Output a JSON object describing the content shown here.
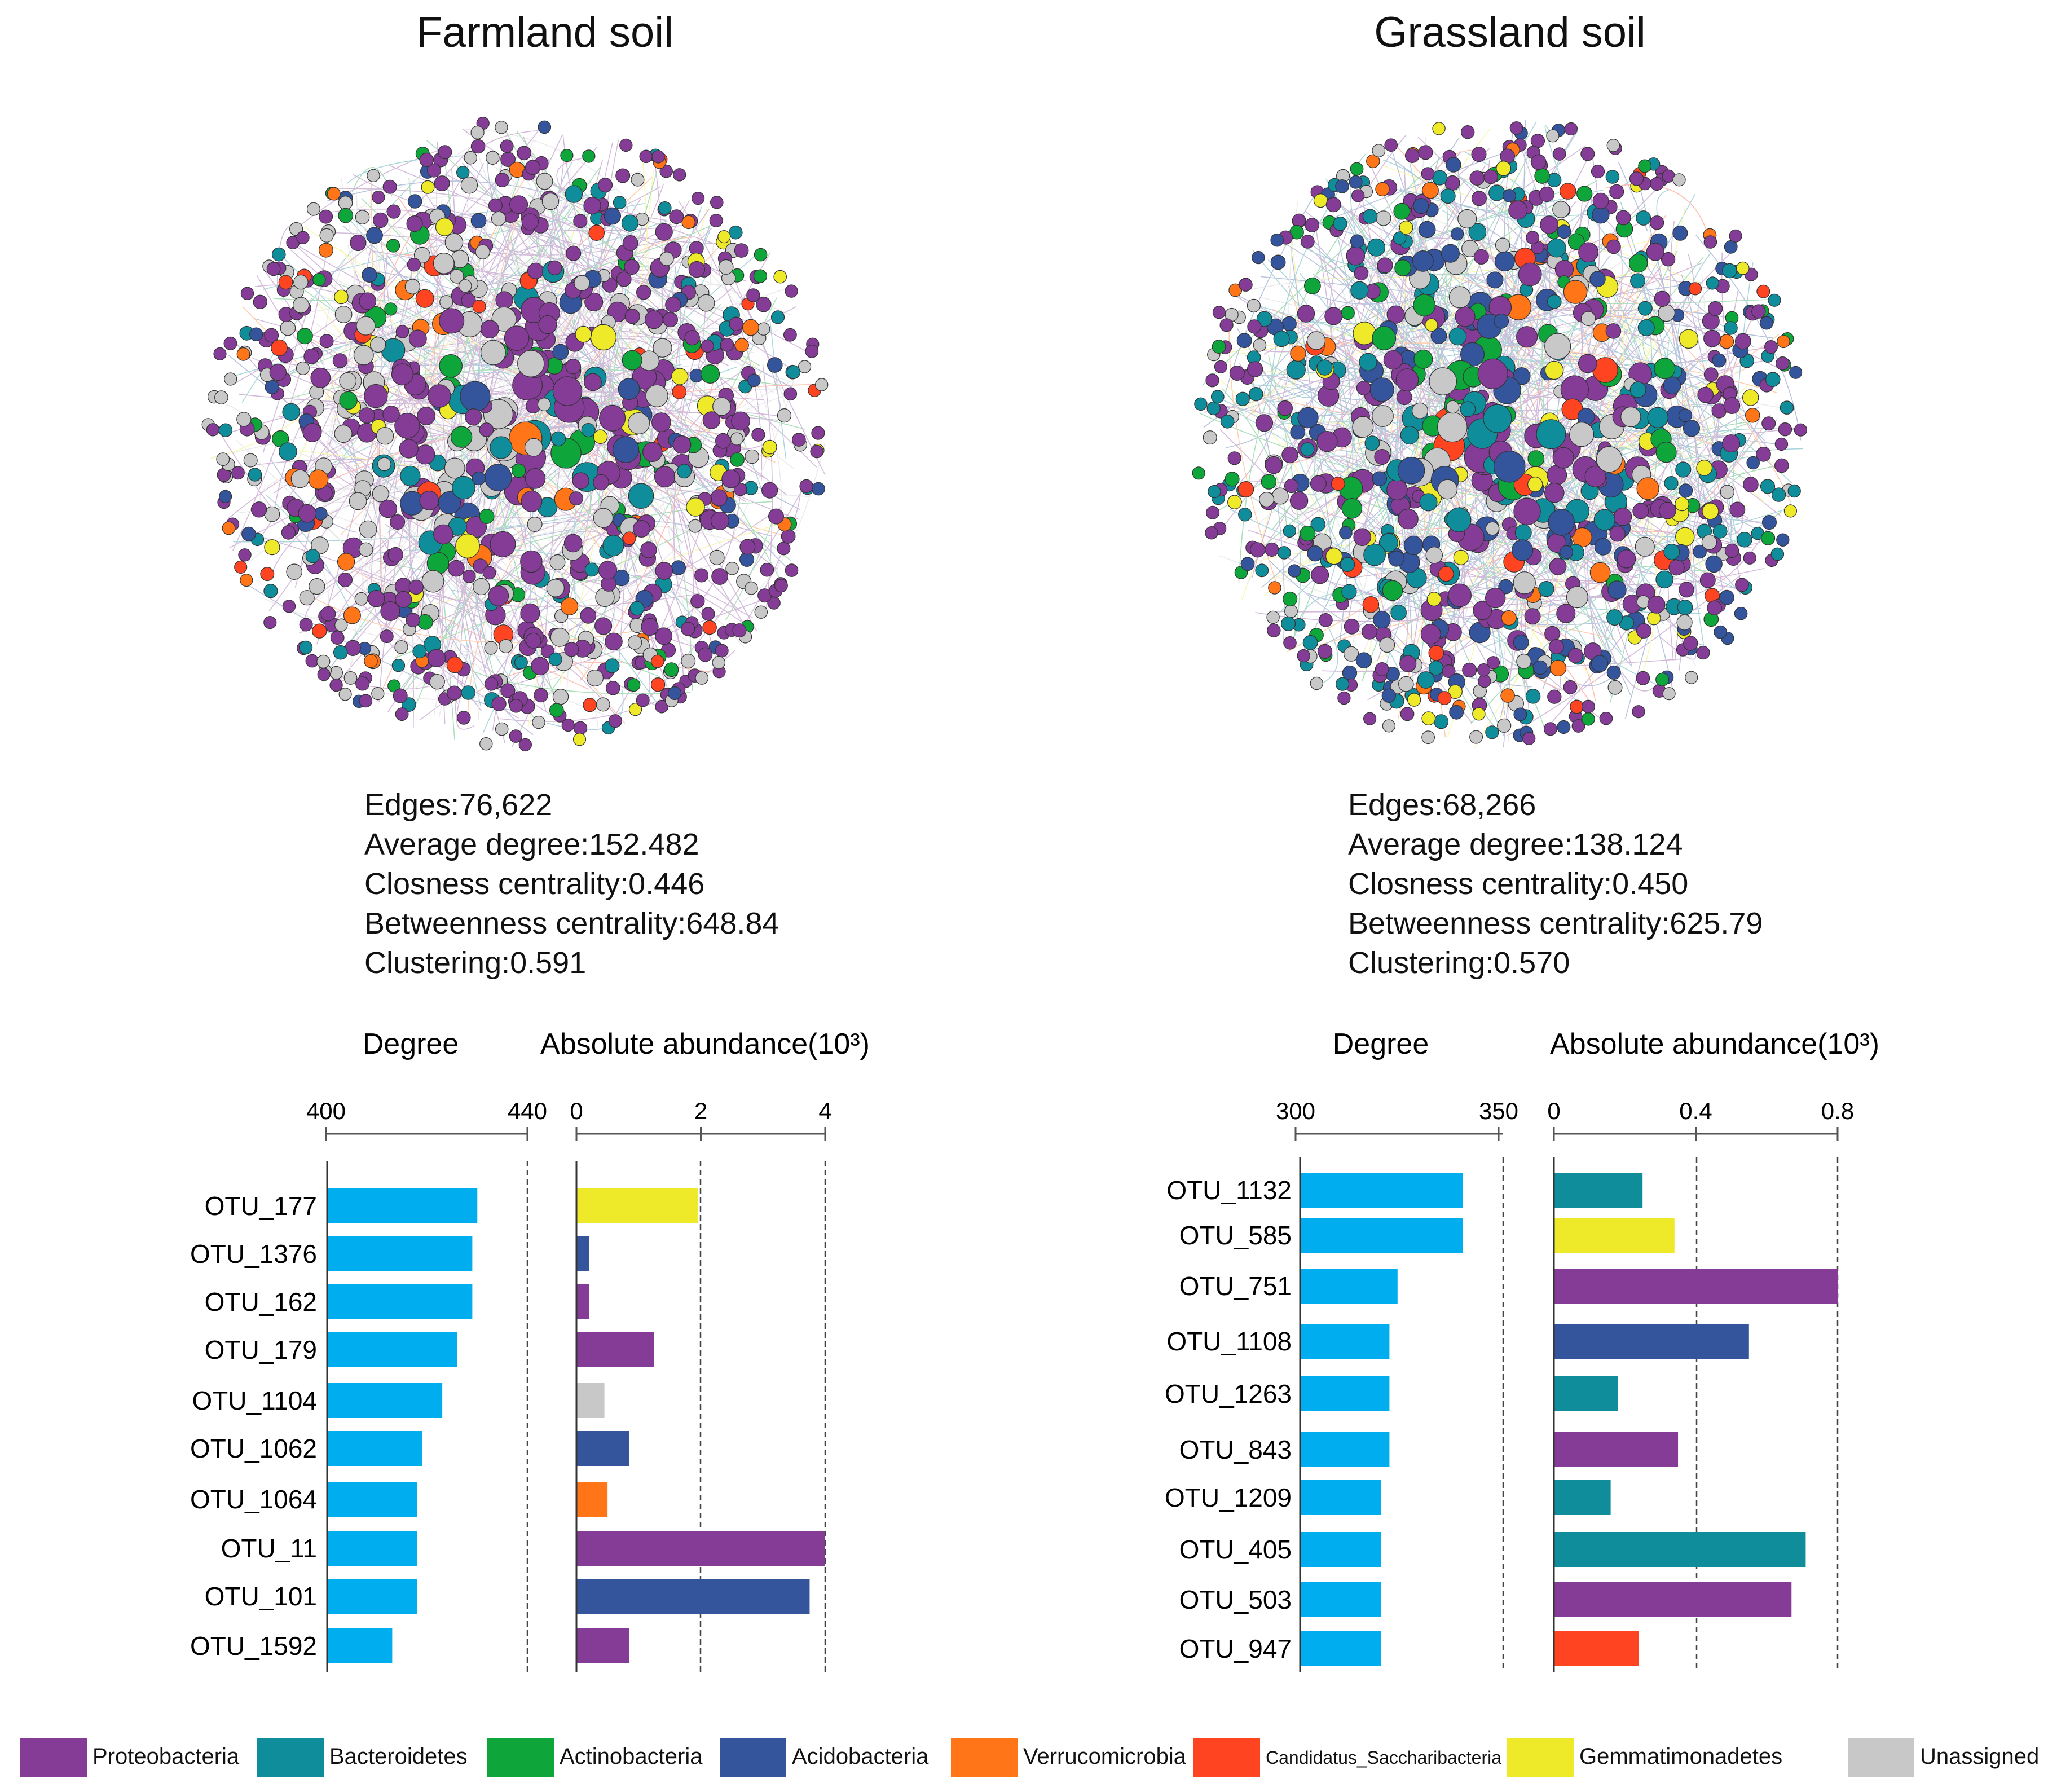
{
  "panels": {
    "farmland": {
      "title": "Farmland soil",
      "stats": {
        "edges": "Edges:76,622",
        "avg_degree": "Average degree:152.482",
        "closeness": "Closness centrality:0.446",
        "betweenness": "Betweenness centrality:648.84",
        "clustering": "Clustering:0.591"
      }
    },
    "grassland": {
      "title": "Grassland soil",
      "stats": {
        "edges": "Edges:68,266",
        "avg_degree": "Average degree:138.124",
        "closeness": "Closness centrality:0.450",
        "betweenness": "Betweenness centrality:625.79",
        "clustering": "Clustering:0.570"
      }
    }
  },
  "legend": [
    {
      "label": "Proteobacteria",
      "color": "#843c97"
    },
    {
      "label": "Bacteroidetes",
      "color": "#0f8d9a"
    },
    {
      "label": "Actinobacteria",
      "color": "#0ea53a"
    },
    {
      "label": "Acidobacteria",
      "color": "#34549c"
    },
    {
      "label": "Verrucomicrobia",
      "color": "#ff7518"
    },
    {
      "label": "Candidatus_Saccharibacteria",
      "color": "#ff4422"
    },
    {
      "label": "Gemmatimonadetes",
      "color": "#eeea2a"
    },
    {
      "label": "Unassigned",
      "color": "#c8c8c8"
    }
  ],
  "chart_data": [
    {
      "type": "bar",
      "panel": "Farmland soil",
      "title": "Degree",
      "orientation": "horizontal",
      "categories": [
        "OTU_177",
        "OTU_1376",
        "OTU_162",
        "OTU_179",
        "OTU_1104",
        "OTU_1062",
        "OTU_1064",
        "OTU_11",
        "OTU_101",
        "OTU_1592"
      ],
      "values": [
        430,
        429,
        429,
        426,
        423,
        419,
        418,
        418,
        418,
        413
      ],
      "xlim": [
        400,
        440
      ],
      "ticks": [
        "400",
        "440"
      ],
      "bar_color": "#00adef"
    },
    {
      "type": "bar",
      "panel": "Farmland soil",
      "title": "Absolute abundance(10³)",
      "orientation": "horizontal",
      "categories": [
        "OTU_177",
        "OTU_1376",
        "OTU_162",
        "OTU_179",
        "OTU_1104",
        "OTU_1062",
        "OTU_1064",
        "OTU_11",
        "OTU_101",
        "OTU_1592"
      ],
      "values": [
        1.95,
        0.2,
        0.2,
        1.25,
        0.45,
        0.85,
        0.5,
        4.1,
        3.75,
        0.85
      ],
      "phyla": [
        "Gemmatimonadetes",
        "Acidobacteria",
        "Proteobacteria",
        "Proteobacteria",
        "Unassigned",
        "Acidobacteria",
        "Verrucomicrobia",
        "Proteobacteria",
        "Acidobacteria",
        "Proteobacteria"
      ],
      "xlim": [
        0,
        4
      ],
      "ticks": [
        "0",
        "2",
        "4"
      ]
    },
    {
      "type": "bar",
      "panel": "Grassland soil",
      "title": "Degree",
      "orientation": "horizontal",
      "categories": [
        "OTU_1132",
        "OTU_585",
        "OTU_751",
        "OTU_1108",
        "OTU_1263",
        "OTU_843",
        "OTU_1209",
        "OTU_405",
        "OTU_503",
        "OTU_947"
      ],
      "values": [
        340,
        340,
        324,
        322,
        322,
        322,
        320,
        320,
        320,
        320
      ],
      "xlim": [
        300,
        350
      ],
      "ticks": [
        "300",
        "350"
      ],
      "bar_color": "#00adef"
    },
    {
      "type": "bar",
      "panel": "Grassland soil",
      "title": "Absolute abundance(10³)",
      "orientation": "horizontal",
      "categories": [
        "OTU_1132",
        "OTU_585",
        "OTU_751",
        "OTU_1108",
        "OTU_1263",
        "OTU_843",
        "OTU_1209",
        "OTU_405",
        "OTU_503",
        "OTU_947"
      ],
      "values": [
        0.25,
        0.34,
        0.8,
        0.55,
        0.18,
        0.35,
        0.16,
        0.71,
        0.67,
        0.24
      ],
      "phyla": [
        "Bacteroidetes",
        "Gemmatimonadetes",
        "Proteobacteria",
        "Acidobacteria",
        "Bacteroidetes",
        "Proteobacteria",
        "Bacteroidetes",
        "Bacteroidetes",
        "Proteobacteria",
        "Candidatus_Saccharibacteria"
      ],
      "xlim": [
        0,
        0.8
      ],
      "ticks": [
        "0",
        "0.4",
        "0.8"
      ]
    }
  ]
}
